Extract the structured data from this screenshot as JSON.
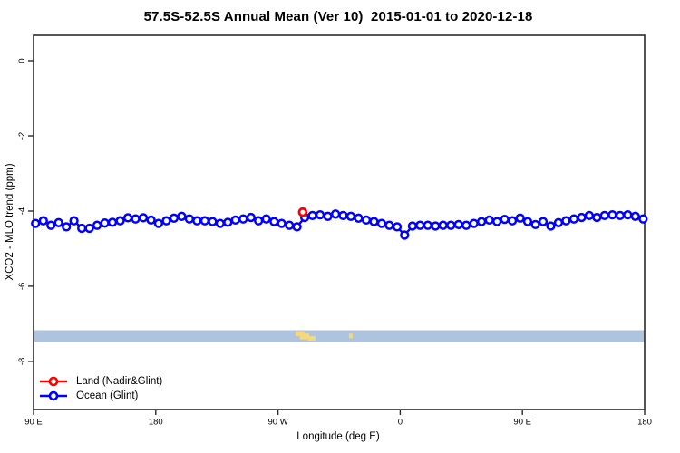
{
  "chart_data": {
    "type": "scatter",
    "title": "57.5S-52.5S Annual Mean (Ver 10)  2015-01-01 to 2020-12-18",
    "xlabel": "Longitude (deg E)",
    "ylabel": "XCO2 - MLO trend (ppm)",
    "grid": false,
    "legend_position": "bottom-left",
    "x_axis": {
      "range": [
        90,
        540
      ],
      "note": "longitude wraps: 90E..180..90W..0..90E..180",
      "ticks": [
        {
          "lon": 90,
          "label": "90 E"
        },
        {
          "lon": 180,
          "label": "180"
        },
        {
          "lon": 270,
          "label": "90 W"
        },
        {
          "lon": 360,
          "label": "0"
        },
        {
          "lon": 450,
          "label": "90 E"
        },
        {
          "lon": 540,
          "label": "180"
        }
      ]
    },
    "y_axis": {
      "range": [
        -9.28,
        0.675
      ],
      "ticks": [
        {
          "v": 0,
          "label": "0"
        },
        {
          "v": -2,
          "label": "-2"
        },
        {
          "v": -4,
          "label": "-4"
        },
        {
          "v": -6,
          "label": "-6"
        },
        {
          "v": -8,
          "label": "-8"
        }
      ]
    },
    "map_band": {
      "description": "latitude-strip map: ocean shading with land patches",
      "v_top": -7.17,
      "v_bottom": -7.48,
      "ocean_color": "#aec3de",
      "land_color": "#f6d878",
      "land_patches": [
        {
          "lon": [
            283.0,
            289.5
          ],
          "fy": [
            0.1,
            0.5
          ]
        },
        {
          "lon": [
            286.0,
            293.0
          ],
          "fy": [
            0.3,
            0.8
          ]
        },
        {
          "lon": [
            292.0,
            297.5
          ],
          "fy": [
            0.5,
            0.9
          ]
        },
        {
          "lon": [
            322.3,
            325.0
          ],
          "fy": [
            0.3,
            0.7
          ]
        }
      ]
    },
    "series": [
      {
        "name": "Land (Nadir&Glint)",
        "color": "#ff0000",
        "marker": "open-circle",
        "lon": [
          288.2
        ],
        "xco2": [
          -4.03
        ]
      },
      {
        "name": "Ocean (Glint)",
        "color": "#0000ff",
        "marker": "open-circle",
        "lon": [
          91.5,
          97.2,
          102.8,
          108.5,
          114.2,
          119.8,
          125.5,
          131.1,
          136.8,
          142.5,
          148.1,
          153.8,
          159.5,
          165.1,
          170.8,
          176.5,
          182.1,
          187.8,
          193.4,
          199.1,
          204.8,
          210.4,
          216.1,
          221.8,
          227.4,
          233.1,
          238.7,
          244.4,
          250.1,
          255.7,
          261.4,
          267.1,
          272.7,
          278.4,
          284.0,
          289.7,
          295.4,
          301.0,
          306.7,
          312.4,
          318.0,
          323.7,
          329.3,
          335.0,
          340.7,
          346.3,
          352.0,
          357.7,
          363.3,
          369.0,
          374.6,
          380.3,
          386.0,
          391.6,
          397.3,
          403.0,
          408.6,
          414.3,
          419.9,
          425.6,
          431.3,
          436.9,
          442.6,
          448.3,
          453.9,
          459.6,
          465.2,
          470.9,
          476.6,
          482.2,
          487.9,
          493.6,
          499.2,
          504.9,
          510.5,
          516.2,
          521.9,
          527.5,
          533.2,
          538.9
        ],
        "xco2": [
          -4.33,
          -4.26,
          -4.38,
          -4.31,
          -4.42,
          -4.26,
          -4.46,
          -4.46,
          -4.38,
          -4.32,
          -4.3,
          -4.26,
          -4.18,
          -4.21,
          -4.18,
          -4.24,
          -4.33,
          -4.26,
          -4.19,
          -4.14,
          -4.21,
          -4.26,
          -4.26,
          -4.28,
          -4.33,
          -4.3,
          -4.24,
          -4.21,
          -4.17,
          -4.26,
          -4.21,
          -4.28,
          -4.33,
          -4.38,
          -4.42,
          -4.17,
          -4.12,
          -4.1,
          -4.14,
          -4.08,
          -4.12,
          -4.14,
          -4.19,
          -4.24,
          -4.28,
          -4.33,
          -4.38,
          -4.42,
          -4.64,
          -4.4,
          -4.38,
          -4.38,
          -4.4,
          -4.38,
          -4.38,
          -4.36,
          -4.38,
          -4.33,
          -4.28,
          -4.24,
          -4.28,
          -4.22,
          -4.26,
          -4.19,
          -4.28,
          -4.36,
          -4.28,
          -4.4,
          -4.31,
          -4.26,
          -4.21,
          -4.17,
          -4.12,
          -4.17,
          -4.12,
          -4.1,
          -4.12,
          -4.1,
          -4.14,
          -4.21
        ]
      }
    ]
  }
}
